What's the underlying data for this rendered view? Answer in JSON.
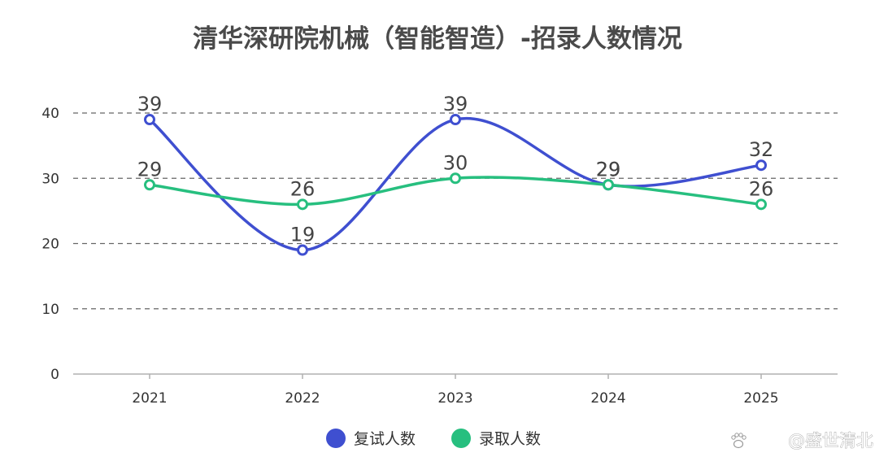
{
  "chart_data": {
    "type": "line",
    "title": "清华深研院机械（智能智造）-招录人数情况",
    "xlabel": "",
    "ylabel": "",
    "categories": [
      "2021",
      "2022",
      "2023",
      "2024",
      "2025"
    ],
    "ylim": [
      0,
      40
    ],
    "yticks": [
      0,
      10,
      20,
      30,
      40
    ],
    "grid": true,
    "smooth": true,
    "legend_position": "bottom",
    "series": [
      {
        "name": "复试人数",
        "values": [
          39,
          19,
          39,
          29,
          32
        ],
        "color": "#3f4fd0"
      },
      {
        "name": "录取人数",
        "values": [
          29,
          26,
          30,
          29,
          26
        ],
        "color": "#27bf7f"
      }
    ]
  },
  "watermark": "@盛世清北",
  "watermark_icon": "paw-icon"
}
